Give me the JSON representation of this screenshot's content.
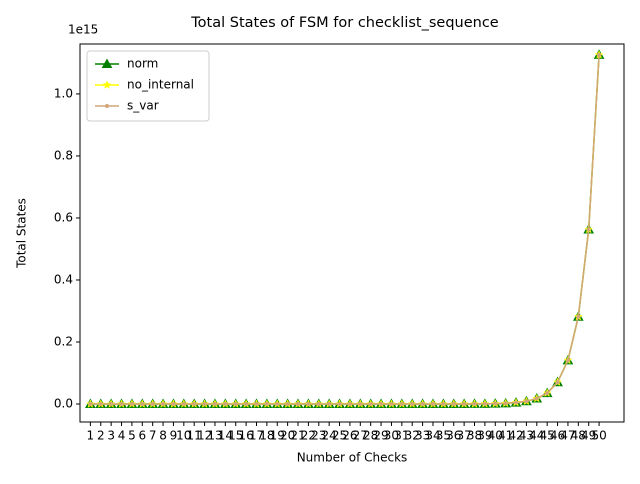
{
  "chart_data": {
    "type": "line",
    "title": "Total States of FSM for checklist_sequence",
    "x_label": "Number of Checks",
    "y_label": "Total States",
    "y_offset_label": "1e15",
    "x": [
      1,
      2,
      3,
      4,
      5,
      6,
      7,
      8,
      9,
      10,
      11,
      12,
      13,
      14,
      15,
      16,
      17,
      18,
      19,
      20,
      21,
      22,
      23,
      24,
      25,
      26,
      27,
      28,
      29,
      30,
      31,
      32,
      33,
      34,
      35,
      36,
      37,
      38,
      39,
      40,
      41,
      42,
      43,
      44,
      45,
      46,
      47,
      48,
      49,
      50
    ],
    "series": [
      {
        "name": "norm",
        "color": "#008000",
        "marker": "triangle",
        "values": [
          2,
          4,
          8,
          16,
          32,
          64,
          128,
          256,
          512,
          1024,
          2048,
          4096,
          8192,
          16384,
          32768,
          65536,
          131072,
          262144,
          524288,
          1048576,
          2097152,
          4194304,
          8388608,
          16777216,
          33554432,
          67108864,
          134217728,
          268435456,
          536870912,
          1073741824,
          2147483648,
          4294967296,
          8589934592,
          17179869184,
          34359738368,
          68719476736,
          137438953472,
          274877906944,
          549755813888,
          1099511627776,
          2199023255552,
          4398046511104,
          8796093022208,
          17592186044416,
          35184372088832,
          70368744177664,
          140737488355328,
          281474976710656,
          562949953421312,
          1125899906842624
        ]
      },
      {
        "name": "no_internal",
        "color": "#ffff00",
        "marker": "star",
        "values": [
          2,
          4,
          8,
          16,
          32,
          64,
          128,
          256,
          512,
          1024,
          2048,
          4096,
          8192,
          16384,
          32768,
          65536,
          131072,
          262144,
          524288,
          1048576,
          2097152,
          4194304,
          8388608,
          16777216,
          33554432,
          67108864,
          134217728,
          268435456,
          536870912,
          1073741824,
          2147483648,
          4294967296,
          8589934592,
          17179869184,
          34359738368,
          68719476736,
          137438953472,
          274877906944,
          549755813888,
          1099511627776,
          2199023255552,
          4398046511104,
          8796093022208,
          17592186044416,
          35184372088832,
          70368744177664,
          140737488355328,
          281474976710656,
          562949953421312,
          1125899906842624
        ]
      },
      {
        "name": "s_var",
        "color": "#d2a679",
        "marker": "dot",
        "values": [
          2,
          4,
          8,
          16,
          32,
          64,
          128,
          256,
          512,
          1024,
          2048,
          4096,
          8192,
          16384,
          32768,
          65536,
          131072,
          262144,
          524288,
          1048576,
          2097152,
          4194304,
          8388608,
          16777216,
          33554432,
          67108864,
          134217728,
          268435456,
          536870912,
          1073741824,
          2147483648,
          4294967296,
          8589934592,
          17179869184,
          34359738368,
          68719476736,
          137438953472,
          274877906944,
          549755813888,
          1099511627776,
          2199023255552,
          4398046511104,
          8796093022208,
          17592186044416,
          35184372088832,
          70368744177664,
          140737488355328,
          281474976710656,
          562949953421312,
          1125899906842624
        ]
      }
    ],
    "xlim": [
      0,
      52.4
    ],
    "ylim": [
      -58000000000000,
      1161000000000000
    ],
    "yticks": [
      {
        "value": 0,
        "label": "0.0"
      },
      {
        "value": 200000000000000,
        "label": "0.2"
      },
      {
        "value": 400000000000000,
        "label": "0.4"
      },
      {
        "value": 600000000000000,
        "label": "0.6"
      },
      {
        "value": 800000000000000,
        "label": "0.8"
      },
      {
        "value": 1000000000000000,
        "label": "1.0"
      }
    ],
    "legend": "upper left",
    "grid": false
  }
}
